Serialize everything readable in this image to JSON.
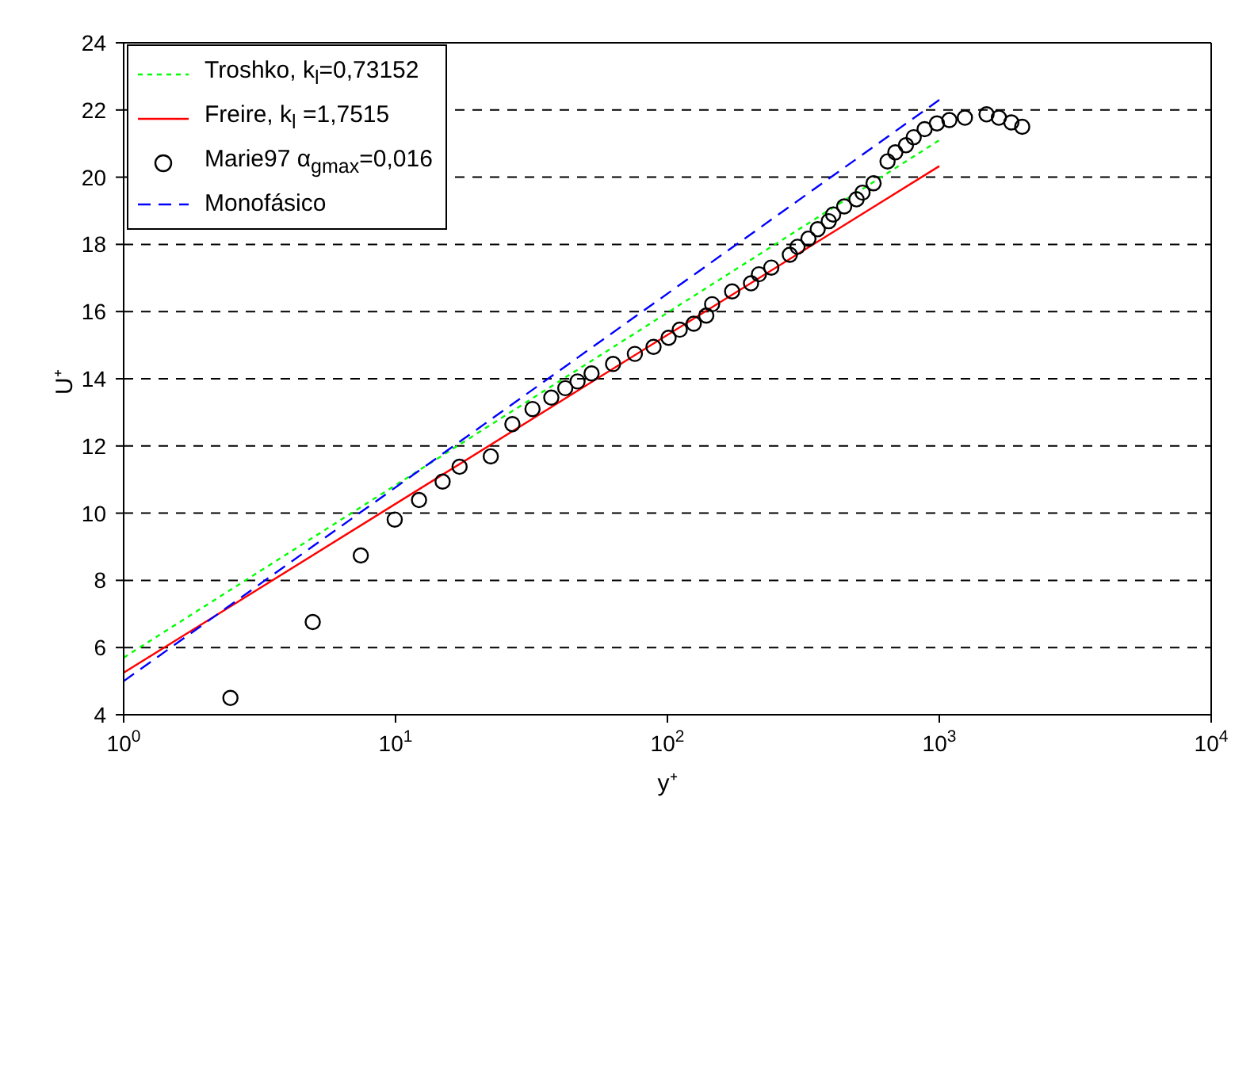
{
  "chart_data": {
    "type": "scatter",
    "xlabel": "y⁺",
    "ylabel": "U⁺",
    "log": "x",
    "grid": "y",
    "legend": "top left",
    "xlim": [
      1,
      10000
    ],
    "xticks": [
      {
        "value": 1,
        "label": "10$^{0}$"
      },
      {
        "value": 10,
        "label": "10$^{1}$"
      },
      {
        "value": 100,
        "label": "10$^{2}$"
      },
      {
        "value": 1000,
        "label": "10$^{3}$"
      },
      {
        "value": 10000,
        "label": "10$^{4}$"
      }
    ],
    "ylim": [
      4,
      24
    ],
    "yticks": [
      4,
      6,
      8,
      10,
      12,
      14,
      16,
      18,
      20,
      22,
      24
    ],
    "series": [
      {
        "name": "Troshko, k$_{l}$=0,73152",
        "type": "line",
        "color": "#00ff00",
        "line_style": "dotted",
        "marker": "none",
        "x": [
          1,
          1000
        ],
        "values": [
          5.7,
          21.1
        ]
      },
      {
        "name": "Freire, k$_{l}$ =1,7515",
        "type": "line",
        "color": "#ff0000",
        "line_style": "solid",
        "marker": "none",
        "x": [
          1,
          1000
        ],
        "values": [
          5.25,
          20.33
        ]
      },
      {
        "name": "Marie97 α$_{gmax}$=0,016",
        "type": "scatter",
        "color": "#000000",
        "marker": "circle",
        "x": [
          2.47,
          4.96,
          7.45,
          9.93,
          12.2,
          14.9,
          17.2,
          22.4,
          26.9,
          31.9,
          37.4,
          42.1,
          46.7,
          52.6,
          63.1,
          75.9,
          88.9,
          101,
          111,
          125,
          139,
          146,
          173,
          203,
          217,
          241,
          282,
          301,
          330,
          357,
          392,
          407,
          447,
          496,
          522,
          573,
          645,
          689,
          754,
          805,
          883,
          980,
          1089,
          1242,
          1492,
          1656,
          1841,
          2018
        ],
        "values": [
          4.5,
          6.76,
          8.74,
          9.81,
          10.39,
          10.94,
          11.38,
          11.69,
          12.65,
          13.1,
          13.44,
          13.72,
          13.92,
          14.16,
          14.44,
          14.74,
          14.95,
          15.22,
          15.46,
          15.64,
          15.88,
          16.22,
          16.6,
          16.84,
          17.11,
          17.31,
          17.69,
          17.93,
          18.17,
          18.45,
          18.69,
          18.89,
          19.13,
          19.34,
          19.54,
          19.82,
          20.47,
          20.74,
          20.95,
          21.19,
          21.43,
          21.6,
          21.7,
          21.77,
          21.87,
          21.77,
          21.63,
          21.5
        ]
      },
      {
        "name": "Monofásico",
        "type": "line",
        "color": "#0000ff",
        "line_style": "dashed",
        "marker": "none",
        "x": [
          1,
          1000
        ],
        "values": [
          5.0,
          22.3
        ]
      }
    ]
  }
}
